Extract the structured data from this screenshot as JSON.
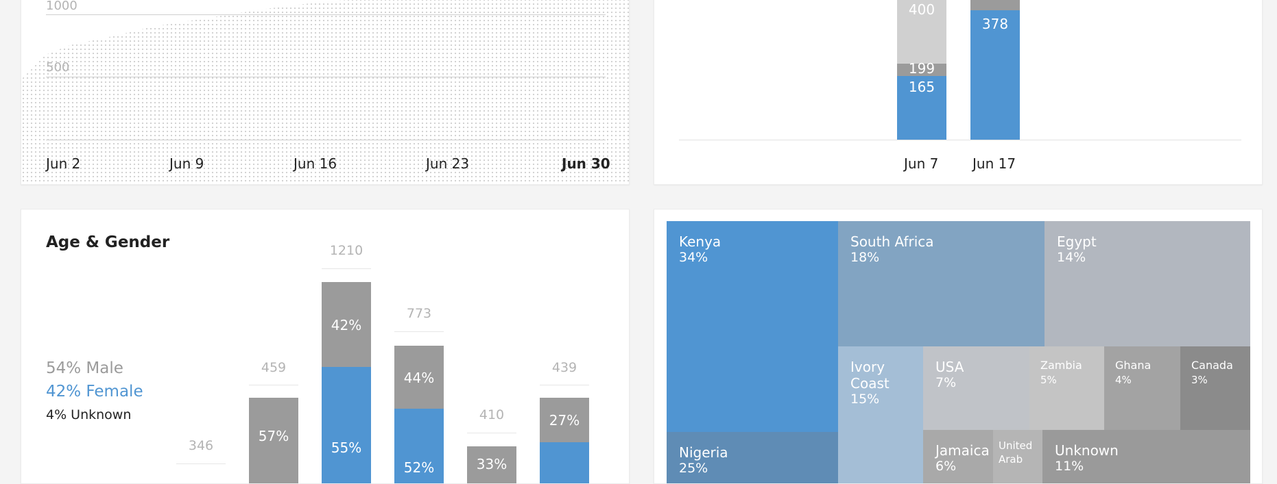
{
  "top_left_chart": {
    "y_ticks": [
      "1000",
      "500"
    ],
    "x_ticks": [
      "Jun 2",
      "Jun 9",
      "Jun 16",
      "Jun 23",
      "Jun 30"
    ]
  },
  "top_right_chart": {
    "bars": [
      {
        "label": "Jun 7",
        "segments": [
          {
            "value": "400"
          },
          {
            "value": "199"
          },
          {
            "value": "165"
          }
        ]
      },
      {
        "label": "Jun 17",
        "segments": [
          {
            "value": "378"
          }
        ]
      }
    ]
  },
  "age_gender": {
    "title": "Age & Gender",
    "legend": {
      "male": "54% Male",
      "female": "42% Female",
      "unknown": "4% Unknown"
    },
    "bars": [
      {
        "total": "346",
        "pct_top": "",
        "pct_bottom": ""
      },
      {
        "total": "459",
        "pct_top": "57%",
        "pct_bottom": ""
      },
      {
        "total": "1210",
        "pct_top": "42%",
        "pct_bottom": "55%"
      },
      {
        "total": "773",
        "pct_top": "44%",
        "pct_bottom": "52%"
      },
      {
        "total": "410",
        "pct_top": "33%",
        "pct_bottom": ""
      },
      {
        "total": "439",
        "pct_top": "27%",
        "pct_bottom": ""
      }
    ]
  },
  "countries": {
    "tiles": [
      {
        "name": "Kenya",
        "pct": "34%"
      },
      {
        "name": "South Africa",
        "pct": "18%"
      },
      {
        "name": "Egypt",
        "pct": "14%"
      },
      {
        "name": "Ivory Coast",
        "pct": "15%"
      },
      {
        "name": "USA",
        "pct": "7%"
      },
      {
        "name": "Zambia",
        "pct": "5%"
      },
      {
        "name": "Ghana",
        "pct": "4%"
      },
      {
        "name": "Canada",
        "pct": "3%"
      },
      {
        "name": "Nigeria",
        "pct": "25%"
      },
      {
        "name": "Jamaica",
        "pct": "6%"
      },
      {
        "name": "United Arab",
        "pct": ""
      },
      {
        "name": "Unknown",
        "pct": "11%"
      }
    ]
  },
  "colors": {
    "blue": "#5095d2",
    "gray": "#9b9b9b",
    "light_gray": "#d0d0d0"
  }
}
